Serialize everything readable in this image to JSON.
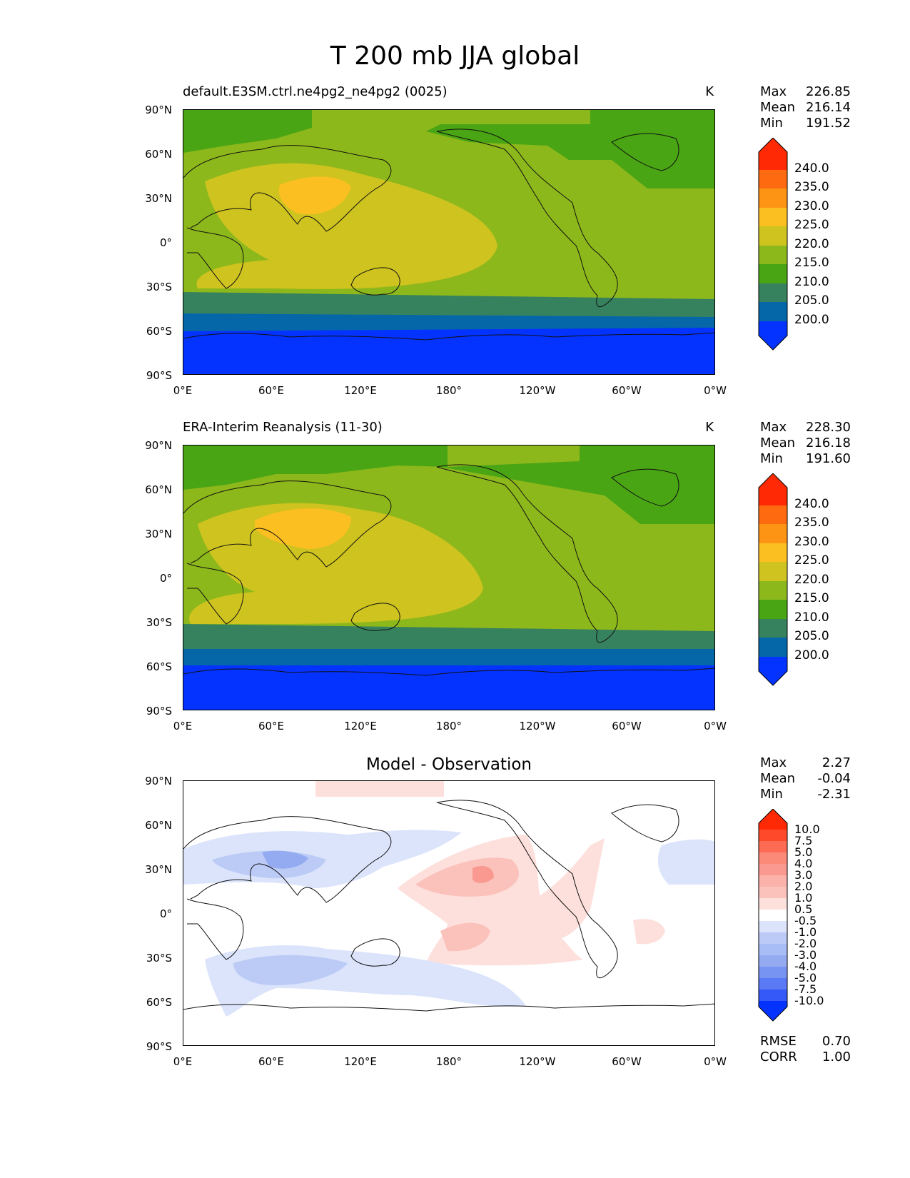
{
  "title": "T 200 mb JJA global",
  "colors": {
    "blue_dark": "#0433ff",
    "blue_mid": "#0567a8",
    "teal": "#37825e",
    "green_dark": "#49a514",
    "green_light": "#8db81b",
    "olive_yellow": "#cec31f",
    "yellow_orange": "#fbbf21",
    "orange": "#fd9414",
    "orange_red": "#fe6a10",
    "red": "#ff2a05"
  },
  "panels": [
    {
      "id": "model",
      "title": "default.E3SM.ctrl.ne4pg2_ne4pg2 (0025)",
      "units": "K",
      "stats": {
        "max_label": "Max",
        "max": "226.85",
        "mean_label": "Mean",
        "mean": "216.14",
        "min_label": "Min",
        "min": "191.52"
      },
      "colorbar_labels": [
        "240.0",
        "235.0",
        "230.0",
        "225.0",
        "220.0",
        "215.0",
        "210.0",
        "205.0",
        "200.0"
      ]
    },
    {
      "id": "obs",
      "title": "ERA-Interim Reanalysis (11-30)",
      "units": "K",
      "stats": {
        "max_label": "Max",
        "max": "228.30",
        "mean_label": "Mean",
        "mean": "216.18",
        "min_label": "Min",
        "min": "191.60"
      },
      "colorbar_labels": [
        "240.0",
        "235.0",
        "230.0",
        "225.0",
        "220.0",
        "215.0",
        "210.0",
        "205.0",
        "200.0"
      ]
    },
    {
      "id": "diff",
      "title": "Model - Observation",
      "units": "",
      "stats": {
        "max_label": "Max",
        "max": "2.27",
        "mean_label": "Mean",
        "mean": "-0.04",
        "min_label": "Min",
        "min": "-2.31"
      },
      "colorbar_labels": [
        "10.0",
        "7.5",
        "5.0",
        "4.0",
        "3.0",
        "2.0",
        "1.0",
        "0.5",
        "-0.5",
        "-1.0",
        "-2.0",
        "-3.0",
        "-4.0",
        "-5.0",
        "-7.5",
        "-10.0"
      ],
      "footer": {
        "rmse_label": "RMSE",
        "rmse": "0.70",
        "corr_label": "CORR",
        "corr": "1.00"
      }
    }
  ],
  "axes": {
    "y_ticks": [
      "90°N",
      "60°N",
      "30°N",
      "0°",
      "30°S",
      "60°S",
      "90°S"
    ],
    "x_ticks": [
      "0°E",
      "60°E",
      "120°E",
      "180°",
      "120°W",
      "60°W",
      "0°W"
    ]
  }
}
